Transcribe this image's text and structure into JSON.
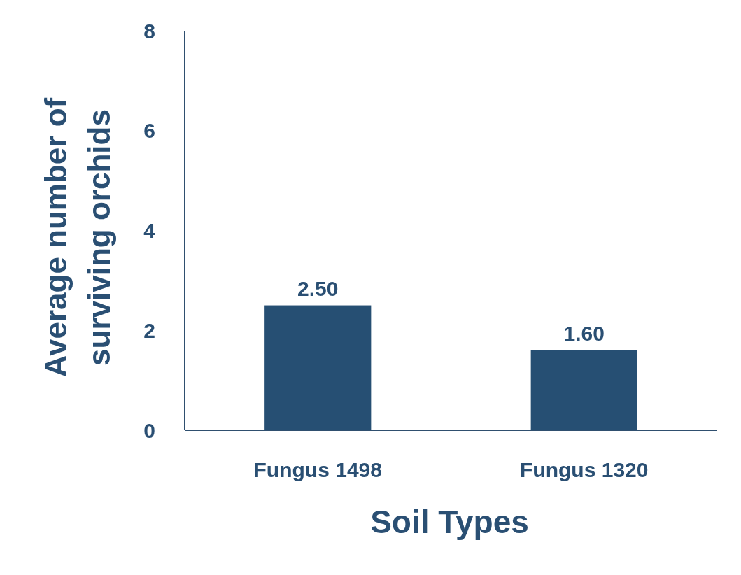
{
  "chart_data": {
    "type": "bar",
    "xlabel": "Soil Types",
    "ylabel": "Average number of surviving orchids",
    "categories": [
      "Fungus 1498",
      "Fungus 1320"
    ],
    "values": [
      2.5,
      1.6
    ],
    "value_labels": [
      "2.50",
      "1.60"
    ],
    "color": "#264f73",
    "ylim": [
      0,
      8
    ],
    "yticks": [
      0,
      2,
      4,
      6,
      8
    ],
    "grid": false
  }
}
